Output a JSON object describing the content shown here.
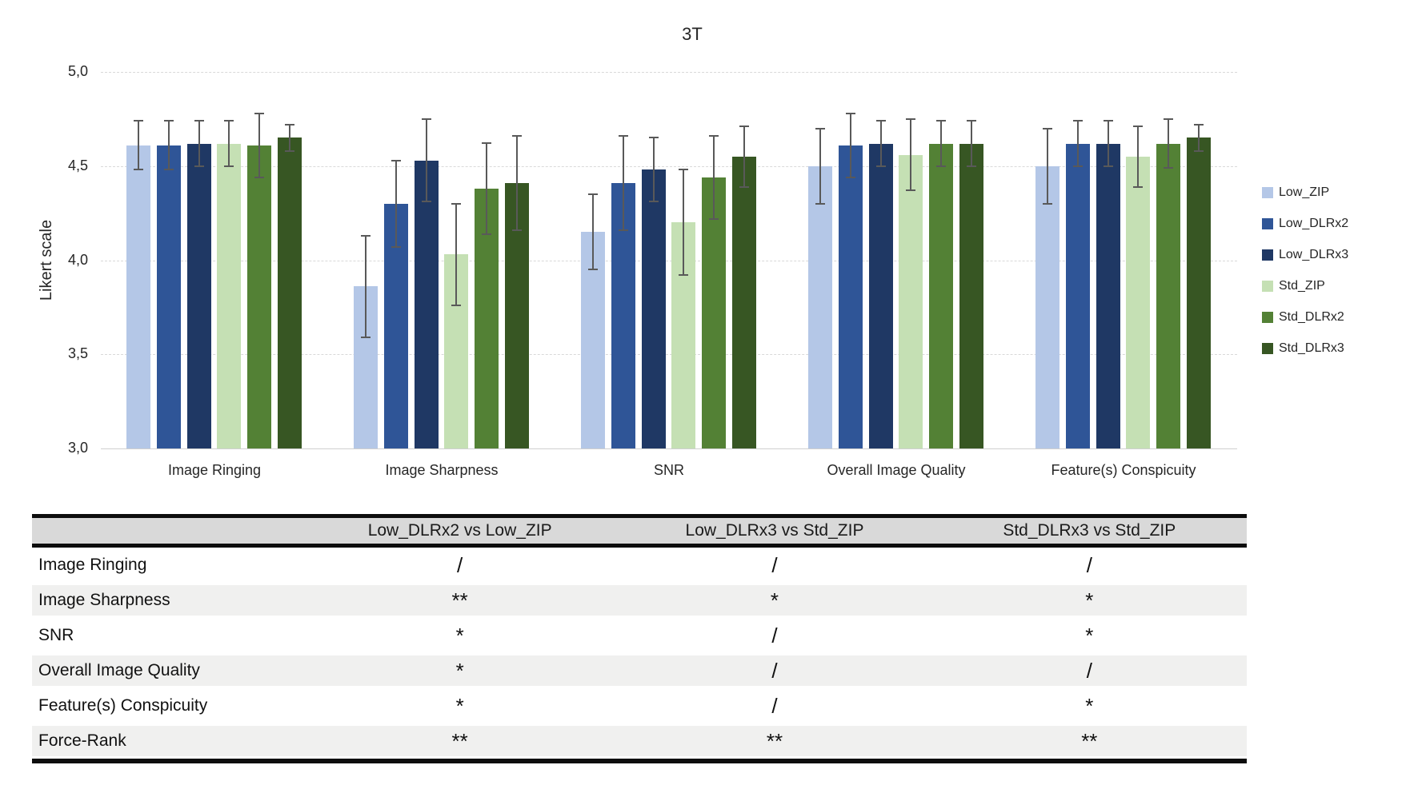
{
  "chart_data": {
    "type": "bar",
    "title": "3T",
    "ylabel": "Likert scale",
    "ylim": [
      3.0,
      5.0
    ],
    "ytick_values": [
      5.0,
      4.5,
      4.0,
      3.5,
      3.0
    ],
    "ytick_labels": [
      "5,0",
      "4,5",
      "4,0",
      "3,5",
      "3,0"
    ],
    "grid": true,
    "legend_position": "right",
    "error_bar_color": "#595959",
    "categories": [
      "Image Ringing",
      "Image Sharpness",
      "SNR",
      "Overall Image Quality",
      "Feature(s) Conspicuity"
    ],
    "series": [
      {
        "name": "Low_ZIP",
        "color": "#B4C7E7",
        "values": [
          4.61,
          3.86,
          4.15,
          4.5,
          4.5
        ],
        "errors": [
          0.13,
          0.27,
          0.2,
          0.2,
          0.2
        ]
      },
      {
        "name": "Low_DLRx2",
        "color": "#2F5597",
        "values": [
          4.61,
          4.3,
          4.41,
          4.61,
          4.62
        ],
        "errors": [
          0.13,
          0.23,
          0.25,
          0.17,
          0.12
        ]
      },
      {
        "name": "Low_DLRx3",
        "color": "#1F3864",
        "values": [
          4.62,
          4.53,
          4.48,
          4.62,
          4.62
        ],
        "errors": [
          0.12,
          0.22,
          0.17,
          0.12,
          0.12
        ]
      },
      {
        "name": "Std_ZIP",
        "color": "#C5E0B4",
        "values": [
          4.62,
          4.03,
          4.2,
          4.56,
          4.55
        ],
        "errors": [
          0.12,
          0.27,
          0.28,
          0.19,
          0.16
        ]
      },
      {
        "name": "Std_DLRx2",
        "color": "#538135",
        "values": [
          4.61,
          4.38,
          4.44,
          4.62,
          4.62
        ],
        "errors": [
          0.17,
          0.24,
          0.22,
          0.12,
          0.13
        ]
      },
      {
        "name": "Std_DLRx3",
        "color": "#375623",
        "values": [
          4.65,
          4.41,
          4.55,
          4.62,
          4.65
        ],
        "errors": [
          0.07,
          0.25,
          0.16,
          0.12,
          0.07
        ]
      }
    ]
  },
  "table": {
    "columns": [
      "",
      "Low_DLRx2 vs Low_ZIP",
      "Low_DLRx3 vs Std_ZIP",
      "Std_DLRx3 vs Std_ZIP"
    ],
    "rows": [
      {
        "label": "Image Ringing",
        "values": [
          "/",
          "/",
          "/"
        ]
      },
      {
        "label": "Image Sharpness",
        "values": [
          "**",
          "*",
          "*"
        ]
      },
      {
        "label": "SNR",
        "values": [
          "*",
          "/",
          "*"
        ]
      },
      {
        "label": "Overall Image Quality",
        "values": [
          "*",
          "/",
          "/"
        ]
      },
      {
        "label": "Feature(s) Conspicuity",
        "values": [
          "*",
          "/",
          "*"
        ]
      },
      {
        "label": "Force-Rank",
        "values": [
          "**",
          "**",
          "**"
        ]
      }
    ]
  }
}
